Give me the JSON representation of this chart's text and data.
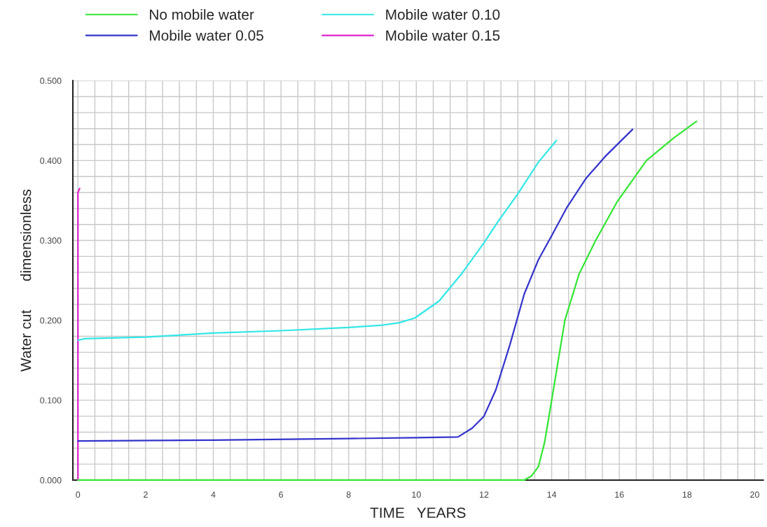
{
  "chart_data": {
    "type": "line",
    "xlabel": "TIME   YEARS",
    "ylabel": "Water cut       dimensionless",
    "xlim": [
      -0.15,
      20.25
    ],
    "ylim": [
      0,
      0.5
    ],
    "xticks": [
      0,
      {
        "value": 0.5,
        "label": null
      },
      {
        "value": 1,
        "label": null
      },
      {
        "value": 1.5,
        "label": null
      },
      2,
      {
        "value": 2.5,
        "label": null
      },
      {
        "value": 3,
        "label": null
      },
      {
        "value": 3.5,
        "label": null
      },
      4,
      {
        "value": 4.5,
        "label": null
      },
      {
        "value": 5,
        "label": null
      },
      {
        "value": 5.5,
        "label": null
      },
      6,
      {
        "value": 6.5,
        "label": null
      },
      {
        "value": 7,
        "label": null
      },
      {
        "value": 7.5,
        "label": null
      },
      8,
      {
        "value": 8.5,
        "label": null
      },
      {
        "value": 9,
        "label": null
      },
      {
        "value": 9.5,
        "label": null
      },
      10,
      {
        "value": 10.5,
        "label": null
      },
      {
        "value": 11,
        "label": null
      },
      {
        "value": 11.5,
        "label": null
      },
      12,
      {
        "value": 12.5,
        "label": null
      },
      {
        "value": 13,
        "label": null
      },
      {
        "value": 13.5,
        "label": null
      },
      14,
      {
        "value": 14.5,
        "label": null
      },
      {
        "value": 15,
        "label": null
      },
      {
        "value": 15.5,
        "label": null
      },
      16,
      {
        "value": 16.5,
        "label": null
      },
      {
        "value": 17,
        "label": null
      },
      {
        "value": 17.5,
        "label": null
      },
      18,
      {
        "value": 18.5,
        "label": null
      },
      {
        "value": 19,
        "label": null
      },
      {
        "value": 19.5,
        "label": null
      },
      20
    ],
    "yticks": [
      {
        "value": 0,
        "label": "0.000"
      },
      {
        "value": 0.02,
        "label": null
      },
      {
        "value": 0.04,
        "label": null
      },
      {
        "value": 0.06,
        "label": null
      },
      {
        "value": 0.08,
        "label": null
      },
      {
        "value": 0.1,
        "label": "0.100"
      },
      {
        "value": 0.12,
        "label": null
      },
      {
        "value": 0.14,
        "label": null
      },
      {
        "value": 0.16,
        "label": null
      },
      {
        "value": 0.18,
        "label": null
      },
      {
        "value": 0.2,
        "label": "0.200"
      },
      {
        "value": 0.22,
        "label": null
      },
      {
        "value": 0.24,
        "label": null
      },
      {
        "value": 0.26,
        "label": null
      },
      {
        "value": 0.28,
        "label": null
      },
      {
        "value": 0.3,
        "label": "0.300"
      },
      {
        "value": 0.32,
        "label": null
      },
      {
        "value": 0.34,
        "label": null
      },
      {
        "value": 0.36,
        "label": null
      },
      {
        "value": 0.38,
        "label": null
      },
      {
        "value": 0.4,
        "label": "0.400"
      },
      {
        "value": 0.42,
        "label": null
      },
      {
        "value": 0.44,
        "label": null
      },
      {
        "value": 0.46,
        "label": null
      },
      {
        "value": 0.48,
        "label": null
      },
      {
        "value": 0.5,
        "label": "0.500"
      }
    ],
    "grid": true,
    "legend": "top",
    "series": [
      {
        "name": "No mobile water",
        "color": "#33e633",
        "x": [
          0,
          13.19,
          13.4,
          13.61,
          13.79,
          14.0,
          14.39,
          14.81,
          15.3,
          15.93,
          16.8,
          17.6,
          18.28
        ],
        "values": [
          0,
          0,
          0.005,
          0.017,
          0.047,
          0.1,
          0.2,
          0.258,
          0.3,
          0.348,
          0.4,
          0.428,
          0.449
        ]
      },
      {
        "name": "Mobile water 0.05",
        "color": "#3333cc",
        "x": [
          0,
          4,
          8,
          10,
          11.23,
          11.65,
          12.0,
          12.35,
          12.77,
          13.19,
          13.61,
          14.0,
          14.46,
          15.02,
          15.58,
          16.39
        ],
        "values": [
          0.049,
          0.05,
          0.052,
          0.053,
          0.054,
          0.065,
          0.08,
          0.113,
          0.17,
          0.233,
          0.276,
          0.306,
          0.342,
          0.378,
          0.405,
          0.439
        ]
      },
      {
        "name": "Mobile water 0.10",
        "color": "#33e6e6",
        "x": [
          0,
          0.2,
          2,
          4,
          6,
          8,
          9,
          9.5,
          9.96,
          10.67,
          11.37,
          12.0,
          12.42,
          12.98,
          13.61,
          14.14
        ],
        "values": [
          0.175,
          0.177,
          0.179,
          0.184,
          0.187,
          0.191,
          0.194,
          0.197,
          0.203,
          0.224,
          0.26,
          0.297,
          0.324,
          0.357,
          0.398,
          0.425
        ]
      },
      {
        "name": "Mobile water 0.15",
        "color": "#dd22cc",
        "x": [
          0,
          0,
          0.05
        ],
        "values": [
          0,
          0.36,
          0.365
        ]
      }
    ]
  }
}
